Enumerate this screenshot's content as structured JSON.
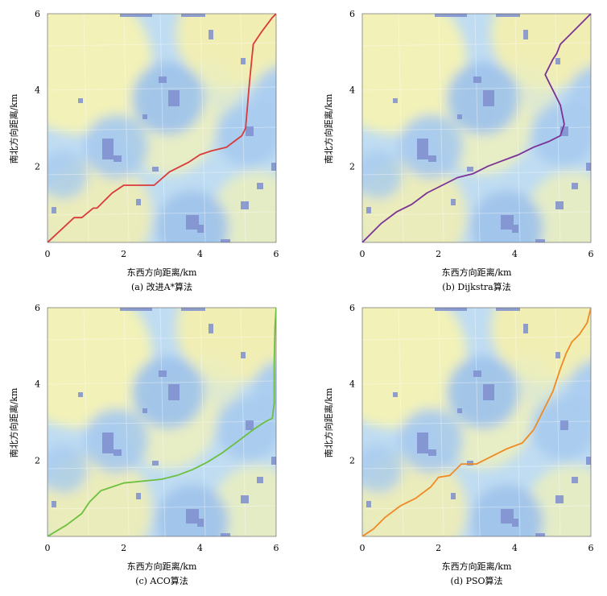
{
  "figure": {
    "panels": [
      {
        "caption": "(a)  改进A*算法",
        "xlabel": "东西方向距离/km",
        "ylabel": "南北方向距离/km",
        "path_color": "#d93a3a"
      },
      {
        "caption": "(b)  Dijkstra算法",
        "xlabel": "东西方向距离/km",
        "ylabel": "南北方向距离/km",
        "path_color": "#7b3296"
      },
      {
        "caption": "(c)  ACO算法",
        "xlabel": "东西方向距离/km",
        "ylabel": "南北方向距离/km",
        "path_color": "#6cbf3f"
      },
      {
        "caption": "(d)  PSO算法",
        "xlabel": "东西方向距离/km",
        "ylabel": "南北方向距离/km",
        "path_color": "#f08a24"
      }
    ]
  },
  "chart_data": [
    {
      "type": "line",
      "title": "",
      "xlabel": "东西方向距离/km",
      "ylabel": "南北方向距离/km",
      "xlim": [
        0,
        6
      ],
      "ylim": [
        0,
        6
      ],
      "xticks": [
        0,
        2,
        4,
        6
      ],
      "yticks": [
        2,
        4,
        6
      ],
      "background": "heatmap",
      "series": [
        {
          "x": [
            0,
            0.7,
            0.9,
            1.2,
            1.3,
            1.6,
            1.7,
            2.0,
            2.8,
            3.2,
            3.4,
            3.7,
            4.0,
            4.3,
            4.7,
            4.9,
            5.1,
            5.2,
            5.3,
            5.4,
            5.6,
            5.9,
            6.0
          ],
          "y": [
            0,
            0.65,
            0.65,
            0.9,
            0.9,
            1.2,
            1.3,
            1.5,
            1.5,
            1.85,
            1.95,
            2.1,
            2.3,
            2.4,
            2.5,
            2.65,
            2.8,
            3.0,
            4.2,
            5.2,
            5.5,
            5.9,
            6.0
          ]
        }
      ]
    },
    {
      "type": "line",
      "title": "",
      "xlabel": "东西方向距离/km",
      "ylabel": "南北方向距离/km",
      "xlim": [
        0,
        6
      ],
      "ylim": [
        0,
        6
      ],
      "xticks": [
        0,
        2,
        4,
        6
      ],
      "yticks": [
        2,
        4,
        6
      ],
      "background": "heatmap",
      "series": [
        {
          "x": [
            0,
            0.5,
            0.9,
            1.3,
            1.7,
            2.1,
            2.5,
            2.9,
            3.3,
            3.7,
            4.1,
            4.5,
            4.9,
            5.2,
            5.3,
            5.2,
            5.0,
            4.9,
            4.8,
            4.9,
            5.0,
            5.1,
            5.2,
            5.5,
            6.0
          ],
          "y": [
            0,
            0.5,
            0.8,
            1.0,
            1.3,
            1.5,
            1.7,
            1.8,
            2.0,
            2.15,
            2.3,
            2.5,
            2.65,
            2.8,
            3.1,
            3.6,
            4.0,
            4.2,
            4.4,
            4.6,
            4.8,
            4.95,
            5.2,
            5.5,
            6.0
          ]
        }
      ]
    },
    {
      "type": "line",
      "title": "",
      "xlabel": "东西方向距离/km",
      "ylabel": "南北方向距离/km",
      "xlim": [
        0,
        6
      ],
      "ylim": [
        0,
        6
      ],
      "xticks": [
        0,
        2,
        4,
        6
      ],
      "yticks": [
        2,
        4,
        6
      ],
      "background": "heatmap",
      "series": [
        {
          "x": [
            0,
            0.5,
            0.9,
            1.1,
            1.4,
            1.7,
            2.0,
            2.5,
            3.0,
            3.4,
            3.8,
            4.2,
            4.6,
            5.0,
            5.4,
            5.7,
            5.9,
            5.95,
            5.95,
            5.97,
            6.0
          ],
          "y": [
            0,
            0.3,
            0.6,
            0.9,
            1.2,
            1.3,
            1.4,
            1.45,
            1.5,
            1.6,
            1.75,
            1.95,
            2.2,
            2.5,
            2.8,
            3.0,
            3.1,
            3.5,
            4.5,
            5.5,
            6.0
          ]
        }
      ]
    },
    {
      "type": "line",
      "title": "",
      "xlabel": "东西方向距离/km",
      "ylabel": "南北方向距离/km",
      "xlim": [
        0,
        6
      ],
      "ylim": [
        0,
        6
      ],
      "xticks": [
        0,
        2,
        4,
        6
      ],
      "yticks": [
        2,
        4,
        6
      ],
      "background": "heatmap",
      "series": [
        {
          "x": [
            0,
            0.3,
            0.6,
            1.0,
            1.4,
            1.8,
            2.0,
            2.3,
            2.6,
            3.0,
            3.4,
            3.8,
            4.2,
            4.5,
            4.8,
            5.0,
            5.1,
            5.2,
            5.35,
            5.5,
            5.7,
            5.9,
            6.0
          ],
          "y": [
            0,
            0.2,
            0.5,
            0.8,
            1.0,
            1.3,
            1.55,
            1.6,
            1.9,
            1.9,
            2.1,
            2.3,
            2.45,
            2.8,
            3.4,
            3.8,
            4.1,
            4.4,
            4.8,
            5.1,
            5.3,
            5.6,
            6.0
          ]
        }
      ]
    }
  ]
}
